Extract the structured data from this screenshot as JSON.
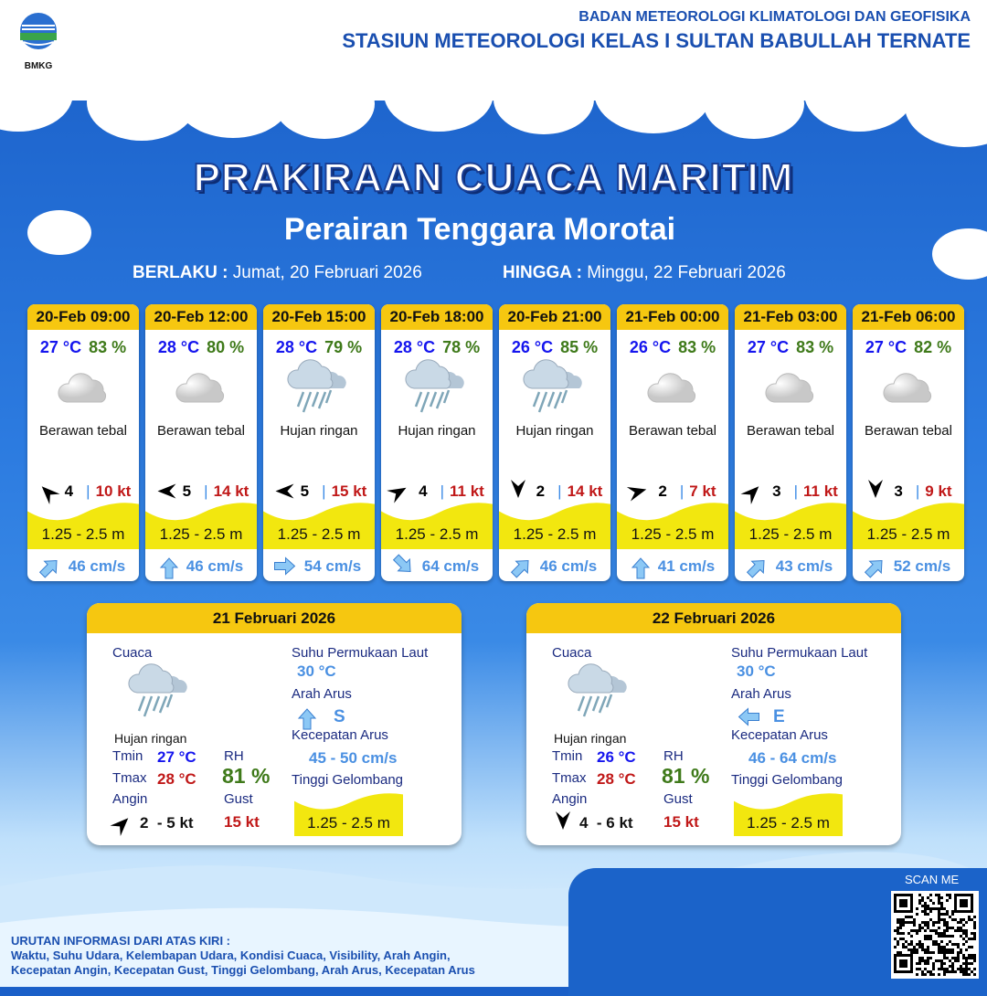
{
  "header": {
    "logo_text": "BMKG",
    "agency": "BADAN METEOROLOGI KLIMATOLOGI DAN GEOFISIKA",
    "station": "STASIUN METEOROLOGI KELAS I SULTAN BABULLAH TERNATE"
  },
  "title": "PRAKIRAAN CUACA MARITIM",
  "subtitle": "Perairan Tenggara Morotai",
  "validity": {
    "from_label": "BERLAKU :",
    "from": "Jumat, 20 Februari 2026",
    "to_label": "HINGGA :",
    "to": "Minggu, 22 Februari 2026"
  },
  "colors": {
    "header_yellow": "#f6c710",
    "temp": "#1515ee",
    "rh": "#3f7a1a",
    "gust": "#c01818",
    "current": "#4a90e2",
    "wave": "#f2e70f"
  },
  "forecasts": [
    {
      "time": "20-Feb 09:00",
      "temp": "27 °C",
      "rh": "83 %",
      "icon": "cloudy-icon",
      "weather": "Berawan tebal",
      "wind_dir_deg": 135,
      "wind": "4",
      "gust": "10 kt",
      "wave": "1.25 - 2.5 m",
      "current_dir_deg": 225,
      "current": "46 cm/s"
    },
    {
      "time": "20-Feb 12:00",
      "temp": "28 °C",
      "rh": "80 %",
      "icon": "cloudy-icon",
      "weather": "Berawan tebal",
      "wind_dir_deg": 90,
      "wind": "5",
      "gust": "14 kt",
      "wave": "1.25 - 2.5 m",
      "current_dir_deg": 180,
      "current": "46 cm/s"
    },
    {
      "time": "20-Feb 15:00",
      "temp": "28 °C",
      "rh": "79 %",
      "icon": "rain-icon",
      "weather": "Hujan ringan",
      "wind_dir_deg": 90,
      "wind": "5",
      "gust": "15 kt",
      "wave": "1.25 - 2.5 m",
      "current_dir_deg": 270,
      "current": "54 cm/s"
    },
    {
      "time": "20-Feb 18:00",
      "temp": "28 °C",
      "rh": "78 %",
      "icon": "rain-icon",
      "weather": "Hujan ringan",
      "wind_dir_deg": 240,
      "wind": "4",
      "gust": "11 kt",
      "wave": "1.25 - 2.5 m",
      "current_dir_deg": 315,
      "current": "64 cm/s"
    },
    {
      "time": "20-Feb 21:00",
      "temp": "26 °C",
      "rh": "85 %",
      "icon": "rain-icon",
      "weather": "Hujan ringan",
      "wind_dir_deg": 0,
      "wind": "2",
      "gust": "14 kt",
      "wave": "1.25 - 2.5 m",
      "current_dir_deg": 225,
      "current": "46 cm/s"
    },
    {
      "time": "21-Feb 00:00",
      "temp": "26 °C",
      "rh": "83 %",
      "icon": "cloudy-icon",
      "weather": "Berawan tebal",
      "wind_dir_deg": 255,
      "wind": "2",
      "gust": "7 kt",
      "wave": "1.25 - 2.5 m",
      "current_dir_deg": 180,
      "current": "41 cm/s"
    },
    {
      "time": "21-Feb 03:00",
      "temp": "27 °C",
      "rh": "83 %",
      "icon": "cloudy-icon",
      "weather": "Berawan tebal",
      "wind_dir_deg": 225,
      "wind": "3",
      "gust": "11 kt",
      "wave": "1.25 - 2.5 m",
      "current_dir_deg": 225,
      "current": "43 cm/s"
    },
    {
      "time": "21-Feb 06:00",
      "temp": "27 °C",
      "rh": "82 %",
      "icon": "cloudy-icon",
      "weather": "Berawan tebal",
      "wind_dir_deg": 0,
      "wind": "3",
      "gust": "9 kt",
      "wave": "1.25 - 2.5 m",
      "current_dir_deg": 225,
      "current": "52 cm/s"
    }
  ],
  "labels": {
    "cuaca": "Cuaca",
    "sst": "Suhu Permukaan Laut",
    "arah_arus": "Arah Arus",
    "kec_arus": "Kecepatan Arus",
    "tinggi": "Tinggi Gelombang",
    "tmin": "Tmin",
    "tmax": "Tmax",
    "rh": "RH",
    "angin": "Angin",
    "gust": "Gust"
  },
  "summaries": [
    {
      "date": "21 Februari 2026",
      "weather": "Hujan ringan",
      "icon": "rain-icon",
      "tmin": "27 °C",
      "tmax": "28 °C",
      "rh": "81 %",
      "wind_dir_deg": 225,
      "wind": "2  - 5 kt",
      "gust": "15 kt",
      "sst": "30 °C",
      "current_dir_deg": 180,
      "current_dir": "S",
      "current": "45 - 50 cm/s",
      "wave": "1.25 - 2.5 m"
    },
    {
      "date": "22 Februari 2026",
      "weather": "Hujan ringan",
      "icon": "rain-icon",
      "tmin": "26 °C",
      "tmax": "28 °C",
      "rh": "81 %",
      "wind_dir_deg": 0,
      "wind": "4  - 6 kt",
      "gust": "15 kt",
      "sst": "30 °C",
      "current_dir_deg": 90,
      "current_dir": "E",
      "current": "46 - 64 cm/s",
      "wave": "1.25 - 2.5 m"
    }
  ],
  "footer": {
    "title": "URUTAN INFORMASI DARI ATAS KIRI :",
    "line1": "Waktu, Suhu Udara, Kelembapan Udara, Kondisi Cuaca, Visibility, Arah Angin,",
    "line2": "Kecepatan Angin, Kecepatan Gust, Tinggi Gelombang, Arah Arus, Kecepatan Arus"
  },
  "qr": {
    "label": "SCAN ME"
  }
}
